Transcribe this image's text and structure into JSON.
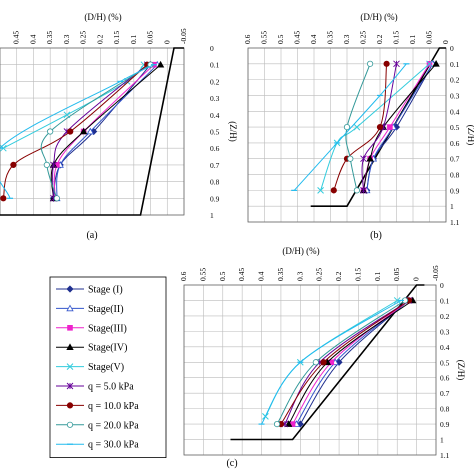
{
  "chart_data": [
    {
      "type": "line",
      "panel_label": "(a)",
      "xlabel": "(D/H) (%)",
      "ylabel": "(Z/H)",
      "x_ticks": [
        "0.45",
        "0.4",
        "0.35",
        "0.3",
        "0.25",
        "0.2",
        "0.15",
        "0.1",
        "0.05",
        "0",
        "-0.05"
      ],
      "y_ticks": [
        "0",
        "0.1",
        "0.2",
        "0.3",
        "0.4",
        "0.5",
        "0.6",
        "0.7",
        "0.8",
        "0.9",
        "1"
      ],
      "xlim": [
        0.5,
        -0.05
      ],
      "ylim": [
        0,
        1.0
      ],
      "reverse_x": true,
      "grid": true,
      "boundary": [
        [
          0.5,
          1.0
        ],
        [
          0.08,
          1.0
        ],
        [
          -0.02,
          0.0
        ],
        [
          -0.05,
          0.0
        ]
      ],
      "series": [
        {
          "name": "Stage (I)",
          "points": [
            [
              0.34,
              0.9
            ],
            [
              0.32,
              0.7
            ],
            [
              0.22,
              0.5
            ],
            [
              0.05,
              0.1
            ]
          ]
        },
        {
          "name": "Stage(II)",
          "points": [
            [
              0.33,
              0.9
            ],
            [
              0.32,
              0.7
            ],
            [
              0.23,
              0.5
            ],
            [
              0.03,
              0.1
            ]
          ]
        },
        {
          "name": "Stage(III)",
          "points": [
            [
              0.335,
              0.9
            ],
            [
              0.33,
              0.7
            ],
            [
              0.25,
              0.5
            ],
            [
              0.04,
              0.1
            ]
          ]
        },
        {
          "name": "Stage(IV)",
          "points": [
            [
              0.34,
              0.9
            ],
            [
              0.34,
              0.7
            ],
            [
              0.25,
              0.5
            ],
            [
              0.02,
              0.1
            ]
          ]
        },
        {
          "name": "Stage(V)",
          "points": [
            [
              0.49,
              0.6
            ],
            [
              0.3,
              0.4
            ],
            [
              0.12,
              0.2
            ],
            [
              0.07,
              0.1
            ]
          ]
        },
        {
          "name": "q = 5.0 kPa",
          "points": [
            [
              0.34,
              0.9
            ],
            [
              0.34,
              0.7
            ],
            [
              0.3,
              0.5
            ],
            [
              0.06,
              0.1
            ]
          ]
        },
        {
          "name": "q = 10.0 kPa",
          "points": [
            [
              0.49,
              0.9
            ],
            [
              0.46,
              0.7
            ],
            [
              0.29,
              0.5
            ],
            [
              0.06,
              0.1
            ]
          ]
        },
        {
          "name": "q = 20.0 kPa",
          "points": [
            [
              0.33,
              0.9
            ],
            [
              0.36,
              0.7
            ],
            [
              0.35,
              0.5
            ],
            [
              0.05,
              0.1
            ]
          ]
        },
        {
          "name": "q = 30.0 kPa",
          "points": [
            [
              0.47,
              0.9
            ],
            [
              0.5,
              0.6
            ],
            [
              0.14,
              0.2
            ],
            [
              0.04,
              0.1
            ]
          ]
        }
      ]
    },
    {
      "type": "line",
      "panel_label": "(b)",
      "xlabel": "(D/H) (%)",
      "ylabel": "(Z/H)",
      "x_ticks": [
        "0.6",
        "0.55",
        "0.5",
        "0.45",
        "0.4",
        "0.35",
        "0.3",
        "0.25",
        "0.2",
        "0.15",
        "0.1",
        "0.05",
        "0"
      ],
      "y_ticks": [
        "0",
        "0.1",
        "0.2",
        "0.3",
        "0.4",
        "0.5",
        "0.6",
        "0.7",
        "0.8",
        "0.9",
        "1",
        "1.1"
      ],
      "xlim": [
        0.6,
        0.0
      ],
      "ylim": [
        0,
        1.1
      ],
      "reverse_x": true,
      "grid": true,
      "boundary": [
        [
          0.41,
          1.0
        ],
        [
          0.3,
          1.0
        ],
        [
          0.02,
          0.0
        ],
        [
          0.0,
          0.0
        ]
      ],
      "series": [
        {
          "name": "Stage (I)",
          "points": [
            [
              0.24,
              0.9
            ],
            [
              0.22,
              0.7
            ],
            [
              0.15,
              0.5
            ],
            [
              0.04,
              0.1
            ]
          ]
        },
        {
          "name": "Stage(II)",
          "points": [
            [
              0.24,
              0.9
            ],
            [
              0.22,
              0.7
            ],
            [
              0.16,
              0.5
            ],
            [
              0.04,
              0.1
            ]
          ]
        },
        {
          "name": "Stage(III)",
          "points": [
            [
              0.25,
              0.9
            ],
            [
              0.23,
              0.7
            ],
            [
              0.17,
              0.5
            ],
            [
              0.05,
              0.1
            ]
          ]
        },
        {
          "name": "Stage(IV)",
          "points": [
            [
              0.25,
              0.9
            ],
            [
              0.23,
              0.7
            ],
            [
              0.19,
              0.5
            ],
            [
              0.03,
              0.1
            ]
          ]
        },
        {
          "name": "Stage(V)",
          "points": [
            [
              0.38,
              0.9
            ],
            [
              0.33,
              0.6
            ],
            [
              0.27,
              0.5
            ],
            [
              0.05,
              0.1
            ]
          ]
        },
        {
          "name": "q = 5.0 kPa",
          "points": [
            [
              0.25,
              0.9
            ],
            [
              0.25,
              0.7
            ],
            [
              0.19,
              0.5
            ],
            [
              0.15,
              0.1
            ]
          ]
        },
        {
          "name": "q = 10.0 kPa",
          "points": [
            [
              0.34,
              0.9
            ],
            [
              0.3,
              0.7
            ],
            [
              0.2,
              0.5
            ],
            [
              0.18,
              0.1
            ]
          ]
        },
        {
          "name": "q = 20.0 kPa",
          "points": [
            [
              0.27,
              0.9
            ],
            [
              0.29,
              0.7
            ],
            [
              0.3,
              0.5
            ],
            [
              0.23,
              0.1
            ]
          ]
        },
        {
          "name": "q = 30.0 kPa",
          "points": [
            [
              0.46,
              0.9
            ],
            [
              0.33,
              0.6
            ],
            [
              0.2,
              0.3
            ],
            [
              0.12,
              0.1
            ]
          ]
        }
      ]
    },
    {
      "type": "line",
      "panel_label": "(c)",
      "xlabel": "(D/H) (%)",
      "ylabel": "(Z/H)",
      "x_ticks": [
        "0.6",
        "0.55",
        "0.5",
        "0.45",
        "0.4",
        "0.35",
        "0.3",
        "0.25",
        "0.2",
        "0.15",
        "0.1",
        "0.05",
        "0",
        "-0.05"
      ],
      "y_ticks": [
        "0",
        "0.1",
        "0.2",
        "0.3",
        "0.4",
        "0.5",
        "0.6",
        "0.7",
        "0.8",
        "0.9",
        "1",
        "1.1"
      ],
      "xlim": [
        0.6,
        -0.05
      ],
      "ylim": [
        0,
        1.1
      ],
      "reverse_x": true,
      "grid": true,
      "legend_position": "left",
      "boundary": [
        [
          0.48,
          1.0
        ],
        [
          0.32,
          1.0
        ],
        [
          0.0,
          0.0
        ],
        [
          -0.02,
          0.0
        ]
      ],
      "series": [
        {
          "name": "Stage (I)",
          "points": [
            [
              0.3,
              0.9
            ],
            [
              0.2,
              0.5
            ],
            [
              0.02,
              0.1
            ]
          ]
        },
        {
          "name": "Stage(II)",
          "points": [
            [
              0.31,
              0.9
            ],
            [
              0.21,
              0.5
            ],
            [
              0.02,
              0.1
            ]
          ]
        },
        {
          "name": "Stage(III)",
          "points": [
            [
              0.32,
              0.9
            ],
            [
              0.22,
              0.5
            ],
            [
              0.02,
              0.1
            ]
          ]
        },
        {
          "name": "Stage(IV)",
          "points": [
            [
              0.33,
              0.9
            ],
            [
              0.23,
              0.5
            ],
            [
              0.01,
              0.1
            ]
          ]
        },
        {
          "name": "Stage(V)",
          "points": [
            [
              0.39,
              0.85
            ],
            [
              0.3,
              0.5
            ],
            [
              0.05,
              0.1
            ]
          ]
        },
        {
          "name": "q = 5.0 kPa",
          "points": [
            [
              0.34,
              0.9
            ],
            [
              0.25,
              0.5
            ],
            [
              0.02,
              0.1
            ]
          ]
        },
        {
          "name": "q = 10.0 kPa",
          "points": [
            [
              0.35,
              0.9
            ],
            [
              0.24,
              0.5
            ],
            [
              0.02,
              0.1
            ]
          ]
        },
        {
          "name": "q = 20.0 kPa",
          "points": [
            [
              0.36,
              0.9
            ],
            [
              0.26,
              0.5
            ],
            [
              0.03,
              0.1
            ]
          ]
        },
        {
          "name": "q = 30.0 kPa",
          "points": [
            [
              0.4,
              0.9
            ],
            [
              0.3,
              0.5
            ],
            [
              0.04,
              0.1
            ]
          ]
        }
      ]
    }
  ],
  "legend": {
    "items": [
      {
        "label": "Stage (I)",
        "color": "#1f2f8f",
        "marker": "diamond",
        "fill": true
      },
      {
        "label": "Stage(II)",
        "color": "#3355cc",
        "marker": "triangle",
        "fill": false
      },
      {
        "label": "Stage(III)",
        "color": "#ee22cc",
        "marker": "square",
        "fill": true
      },
      {
        "label": "Stage(IV)",
        "color": "#000000",
        "marker": "triangle",
        "fill": true
      },
      {
        "label": "Stage(V)",
        "color": "#33ccdd",
        "marker": "x",
        "fill": true
      },
      {
        "label": "q = 5.0 kPa",
        "color": "#660099",
        "marker": "star",
        "fill": true
      },
      {
        "label": "q = 10.0 kPa",
        "color": "#880000",
        "marker": "circle",
        "fill": true
      },
      {
        "label": "q = 20.0 kPa",
        "color": "#339999",
        "marker": "circle",
        "fill": false
      },
      {
        "label": "q = 30.0 kPa",
        "color": "#22bbee",
        "marker": "dash",
        "fill": true
      }
    ]
  }
}
